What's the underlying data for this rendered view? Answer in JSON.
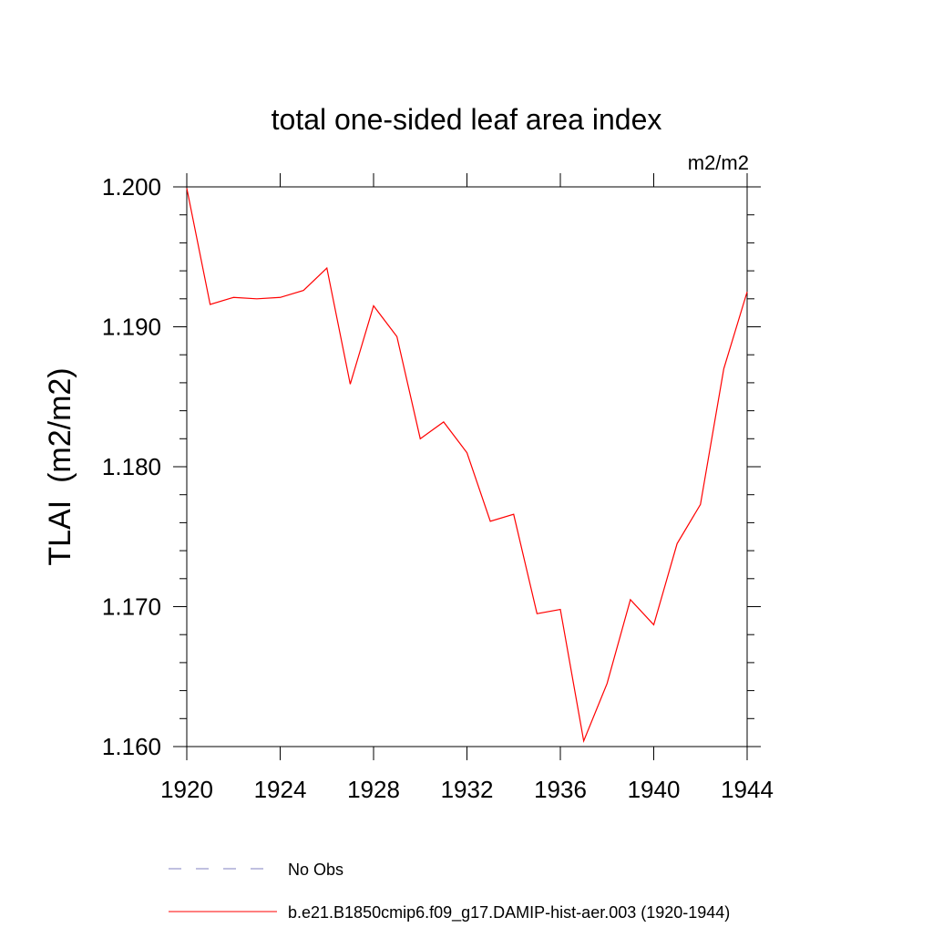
{
  "chart_data": {
    "type": "line",
    "title": "total one-sided leaf area index",
    "units_label": "m2/m2",
    "xlabel": "",
    "ylabel": "TLAI  (m2/m2)",
    "xlim": [
      1920,
      1944
    ],
    "ylim": [
      1.16,
      1.2
    ],
    "x_ticks": [
      1920,
      1924,
      1928,
      1932,
      1936,
      1940,
      1944
    ],
    "x_tick_labels": [
      "1920",
      "1924",
      "1928",
      "1932",
      "1936",
      "1940",
      "1944"
    ],
    "y_ticks": [
      1.16,
      1.17,
      1.18,
      1.19,
      1.2
    ],
    "y_tick_labels": [
      "1.160",
      "1.170",
      "1.180",
      "1.190",
      "1.200"
    ],
    "grid": false,
    "legend_position": "bottom",
    "series": [
      {
        "name": "b.e21.B1850cmip6.f09_g17.DAMIP-hist-aer.003 (1920-1944)",
        "color": "#ff0000",
        "line_style": "solid",
        "x": [
          1920,
          1921,
          1922,
          1923,
          1924,
          1925,
          1926,
          1927,
          1928,
          1929,
          1930,
          1931,
          1932,
          1933,
          1934,
          1935,
          1936,
          1937,
          1938,
          1939,
          1940,
          1941,
          1942,
          1943,
          1944
        ],
        "values": [
          1.1999,
          1.1916,
          1.1921,
          1.192,
          1.1921,
          1.1926,
          1.1942,
          1.1859,
          1.1915,
          1.1893,
          1.182,
          1.1832,
          1.181,
          1.1761,
          1.1766,
          1.1695,
          1.1698,
          1.1604,
          1.1645,
          1.1705,
          1.1687,
          1.1745,
          1.1773,
          1.187,
          1.1925
        ]
      }
    ],
    "legend": [
      {
        "label": "No Obs",
        "color": "#8080c0",
        "line_style": "dashed"
      },
      {
        "label": "b.e21.B1850cmip6.f09_g17.DAMIP-hist-aer.003 (1920-1944)",
        "color": "#ff0000",
        "line_style": "solid"
      }
    ]
  }
}
